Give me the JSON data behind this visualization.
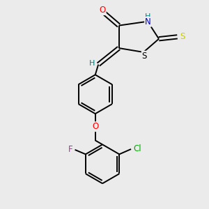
{
  "bg_color": "#ebebeb",
  "bond_color": "#000000",
  "atom_colors": {
    "O": "#ff0000",
    "N": "#0000c8",
    "S_thioxo": "#cccc00",
    "S_ring": "#000000",
    "Cl": "#00aa00",
    "F": "#ff00cc",
    "H": "#008080",
    "C": "#000000"
  },
  "figsize": [
    3.0,
    3.0
  ],
  "dpi": 100
}
